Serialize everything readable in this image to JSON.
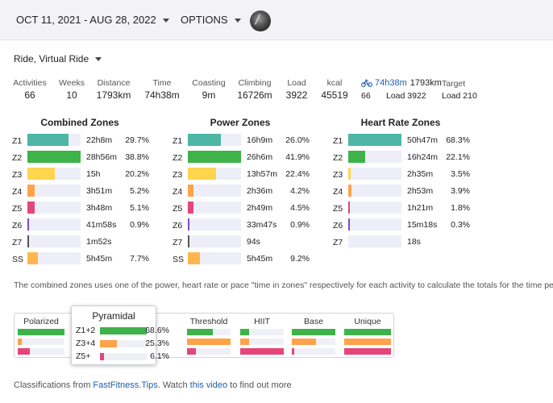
{
  "header": {
    "date_range": "OCT 11, 2021 - AUG 28, 2022",
    "options_label": "OPTIONS",
    "avatar_icon": "user-avatar"
  },
  "sport_filter": "Ride, Virtual Ride",
  "stats": [
    {
      "label": "Activities",
      "value": "66"
    },
    {
      "label": "Weeks",
      "value": "10"
    },
    {
      "label": "Distance",
      "value": "1793km"
    },
    {
      "label": "Time",
      "value": "74h38m"
    },
    {
      "label": "Coasting",
      "value": "9m"
    },
    {
      "label": "Climbing",
      "value": "16726m"
    },
    {
      "label": "Load",
      "value": "3922"
    },
    {
      "label": "kcal",
      "value": "45519"
    }
  ],
  "summary": {
    "icon": "bicycle-icon",
    "time": "74h38m",
    "distance": "1793km",
    "count": "66",
    "load": "Load 3922",
    "target_label": "Target",
    "target_value": "Load 210"
  },
  "colors": {
    "z1": "#4db6a5",
    "z2": "#3db34a",
    "z3": "#ffd54f",
    "z4": "#ffa24a",
    "z5": "#e4467a",
    "z6": "#7c4dcc",
    "z7": "#555555",
    "ss": "#ffb74d",
    "link": "#1e5fa8"
  },
  "combined_zones": {
    "title": "Combined Zones",
    "rows": [
      {
        "zone": "Z1",
        "time": "22h8m",
        "pct": "29.7%",
        "fraction": 0.766
      },
      {
        "zone": "Z2",
        "time": "28h56m",
        "pct": "38.8%",
        "fraction": 1.0
      },
      {
        "zone": "Z3",
        "time": "15h",
        "pct": "20.2%",
        "fraction": 0.52
      },
      {
        "zone": "Z4",
        "time": "3h51m",
        "pct": "5.2%",
        "fraction": 0.134
      },
      {
        "zone": "Z5",
        "time": "3h48m",
        "pct": "5.1%",
        "fraction": 0.131
      },
      {
        "zone": "Z6",
        "time": "41m58s",
        "pct": "0.9%",
        "fraction": 0.024
      },
      {
        "zone": "Z7",
        "time": "1m52s",
        "pct": "",
        "fraction": 0.004
      },
      {
        "zone": "SS",
        "time": "5h45m",
        "pct": "7.7%",
        "fraction": 0.198
      }
    ]
  },
  "power_zones": {
    "title": "Power Zones",
    "rows": [
      {
        "zone": "Z1",
        "time": "16h9m",
        "pct": "26.0%",
        "fraction": 0.62
      },
      {
        "zone": "Z2",
        "time": "26h6m",
        "pct": "41.9%",
        "fraction": 1.0
      },
      {
        "zone": "Z3",
        "time": "13h57m",
        "pct": "22.4%",
        "fraction": 0.535
      },
      {
        "zone": "Z4",
        "time": "2h36m",
        "pct": "4.2%",
        "fraction": 0.1
      },
      {
        "zone": "Z5",
        "time": "2h49m",
        "pct": "4.5%",
        "fraction": 0.108
      },
      {
        "zone": "Z6",
        "time": "33m47s",
        "pct": "0.9%",
        "fraction": 0.022
      },
      {
        "zone": "Z7",
        "time": "94s",
        "pct": "",
        "fraction": 0.004
      },
      {
        "zone": "SS",
        "time": "5h45m",
        "pct": "9.2%",
        "fraction": 0.22
      }
    ]
  },
  "hr_zones": {
    "title": "Heart Rate Zones",
    "rows": [
      {
        "zone": "Z1",
        "time": "50h47m",
        "pct": "68.3%",
        "fraction": 1.0
      },
      {
        "zone": "Z2",
        "time": "16h24m",
        "pct": "22.1%",
        "fraction": 0.323
      },
      {
        "zone": "Z3",
        "time": "2h35m",
        "pct": "3.5%",
        "fraction": 0.051
      },
      {
        "zone": "Z4",
        "time": "2h53m",
        "pct": "3.9%",
        "fraction": 0.057
      },
      {
        "zone": "Z5",
        "time": "1h21m",
        "pct": "1.8%",
        "fraction": 0.027
      },
      {
        "zone": "Z6",
        "time": "15m18s",
        "pct": "0.3%",
        "fraction": 0.005
      },
      {
        "zone": "Z7",
        "time": "18s",
        "pct": "",
        "fraction": 0.0
      }
    ]
  },
  "note": "The combined zones uses one of the power, heart rate or pace \"time in zones\" respectively for each activity to calculate the totals for the time period",
  "classifications": {
    "models": [
      {
        "name": "Polarized",
        "fractions": [
          1.0,
          0.08,
          0.26
        ]
      },
      {
        "name": "Threshold",
        "fractions": [
          0.6,
          1.0,
          0.2
        ]
      },
      {
        "name": "HIIT",
        "fractions": [
          0.2,
          0.2,
          1.0
        ]
      },
      {
        "name": "Base",
        "fractions": [
          1.0,
          0.55,
          0.06
        ]
      },
      {
        "name": "Unique",
        "fractions": [
          1.0,
          1.0,
          1.0
        ]
      }
    ],
    "selected": {
      "name": "Pyramidal",
      "rows": [
        {
          "label": "Z1+2",
          "pct": "68.6%",
          "fraction": 0.686
        },
        {
          "label": "Z3+4",
          "pct": "25.3%",
          "fraction": 0.253
        },
        {
          "label": "Z5+",
          "pct": "6.1%",
          "fraction": 0.061
        }
      ]
    }
  },
  "footer": {
    "prefix": "Classifications from ",
    "link1": "FastFitness.Tips",
    "middle": ". Watch ",
    "link2": "this video",
    "suffix": " to find out more"
  }
}
